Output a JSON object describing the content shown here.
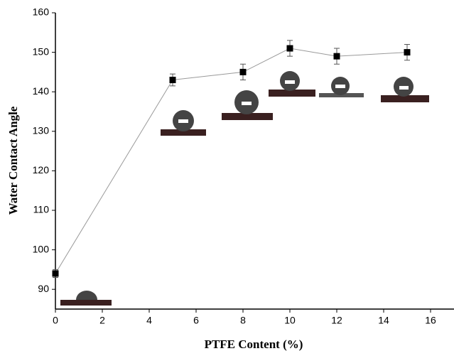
{
  "chart_data": {
    "type": "line",
    "x_label": "PTFE Content (%)",
    "y_label": "Water Contact Angle",
    "xlim": [
      0,
      17
    ],
    "xticks": [
      0,
      2,
      4,
      6,
      8,
      10,
      12,
      14,
      16
    ],
    "ylim": [
      85,
      160
    ],
    "yticks": [
      90,
      100,
      110,
      120,
      130,
      140,
      150,
      160
    ],
    "line_color": "#9a9a9a",
    "series": [
      {
        "color": "#000000",
        "x": [
          0,
          5,
          8,
          10,
          12,
          15
        ],
        "values": [
          94,
          143,
          145,
          151,
          149,
          150
        ],
        "errors": [
          1,
          1.5,
          2,
          2,
          2,
          2
        ]
      }
    ]
  }
}
